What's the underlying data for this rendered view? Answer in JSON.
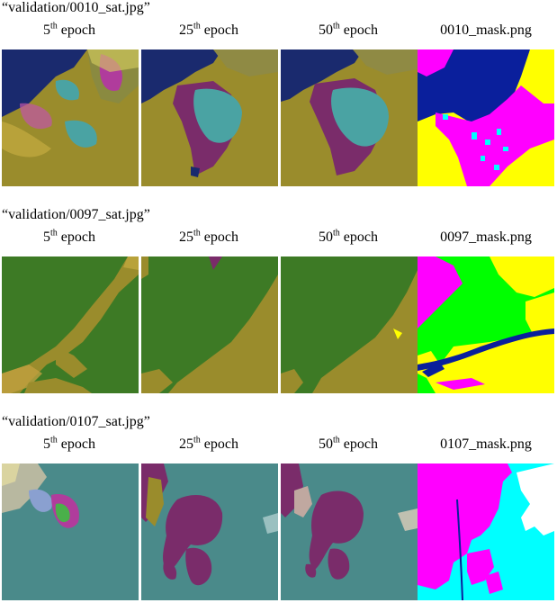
{
  "sections": [
    {
      "title": "“validation/0010_sat.jpg”",
      "labels": [
        {
          "num": "5",
          "sup": "th",
          "rest": " epoch"
        },
        {
          "num": "25",
          "sup": "th",
          "rest": " epoch"
        },
        {
          "num": "50",
          "sup": "th",
          "rest": " epoch"
        },
        {
          "num": "0010_mask.png",
          "sup": "",
          "rest": ""
        }
      ]
    },
    {
      "title": "“validation/0097_sat.jpg”",
      "labels": [
        {
          "num": "5",
          "sup": "th",
          "rest": " epoch"
        },
        {
          "num": "25",
          "sup": "th",
          "rest": " epoch"
        },
        {
          "num": "50",
          "sup": "th",
          "rest": " epoch"
        },
        {
          "num": "0097_mask.png",
          "sup": "",
          "rest": ""
        }
      ]
    },
    {
      "title": "“validation/0107_sat.jpg”",
      "labels": [
        {
          "num": "5",
          "sup": "th",
          "rest": " epoch"
        },
        {
          "num": "25",
          "sup": "th",
          "rest": " epoch"
        },
        {
          "num": "50",
          "sup": "th",
          "rest": " epoch"
        },
        {
          "num": "0107_mask.png",
          "sup": "",
          "rest": ""
        }
      ]
    }
  ],
  "colors": {
    "water": "#0a1f9c",
    "urban": "#ff00ff",
    "agriculture": "#ffff00",
    "forest": "#00ff00",
    "rangeland": "#00ffff",
    "barren": "#ffffff",
    "overlay_agri": "#9a8c2c",
    "overlay_forest": "#3d7a25",
    "overlay_urban": "#7a2c6a",
    "overlay_range": "#4aa3a3",
    "overlay_water": "#1a2a6e"
  }
}
